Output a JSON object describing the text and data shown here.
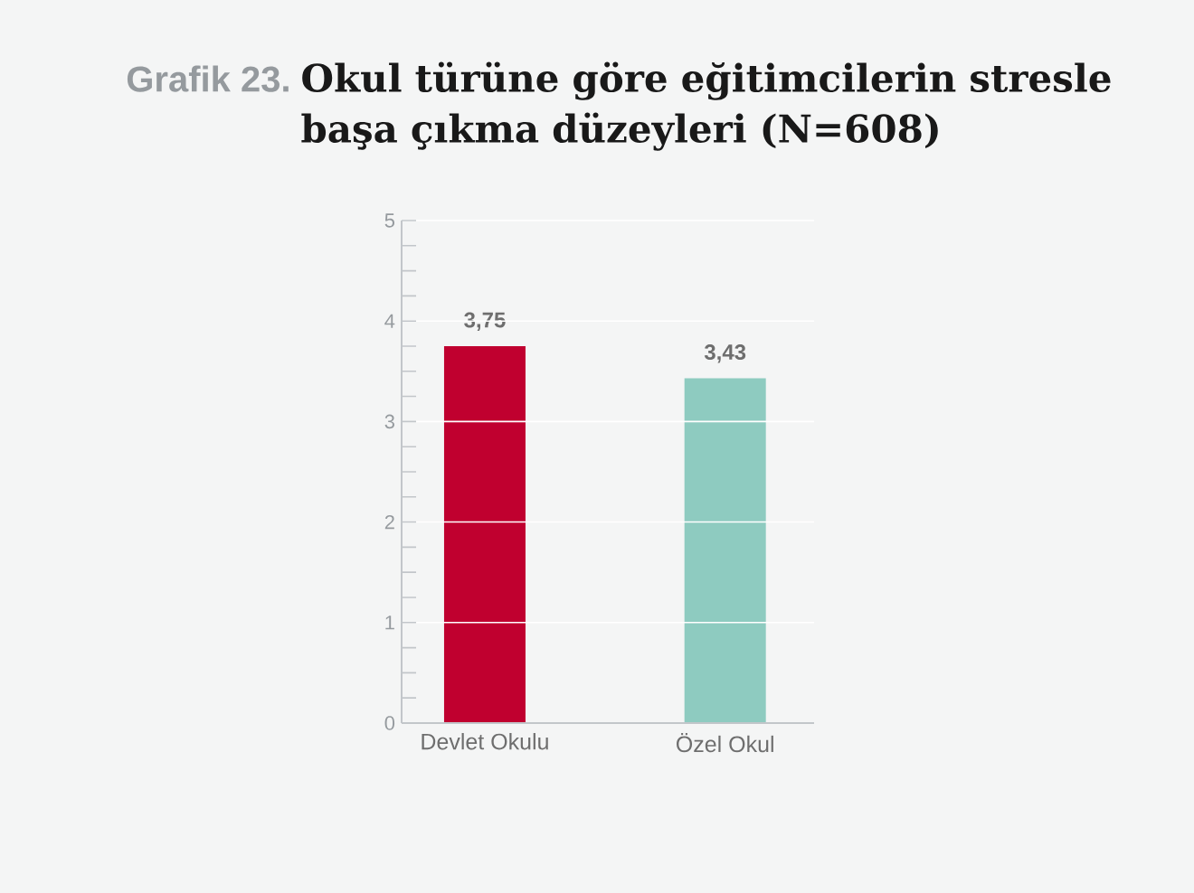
{
  "chart_data": {
    "type": "bar",
    "title": "Grafik 23.",
    "subtitle": "Okul türüne göre eğitimcilerin stresle başa çıkma düzeyleri (N=608)",
    "categories": [
      "Devlet Okulu",
      "Özel Okul"
    ],
    "values": [
      3.75,
      3.43
    ],
    "value_labels": [
      "3,75",
      "3,43"
    ],
    "colors": [
      "#c0002f",
      "#8ecbc0"
    ],
    "ylim": [
      0,
      5
    ],
    "yticks": [
      0,
      1,
      2,
      3,
      4,
      5
    ],
    "grid": "y"
  }
}
